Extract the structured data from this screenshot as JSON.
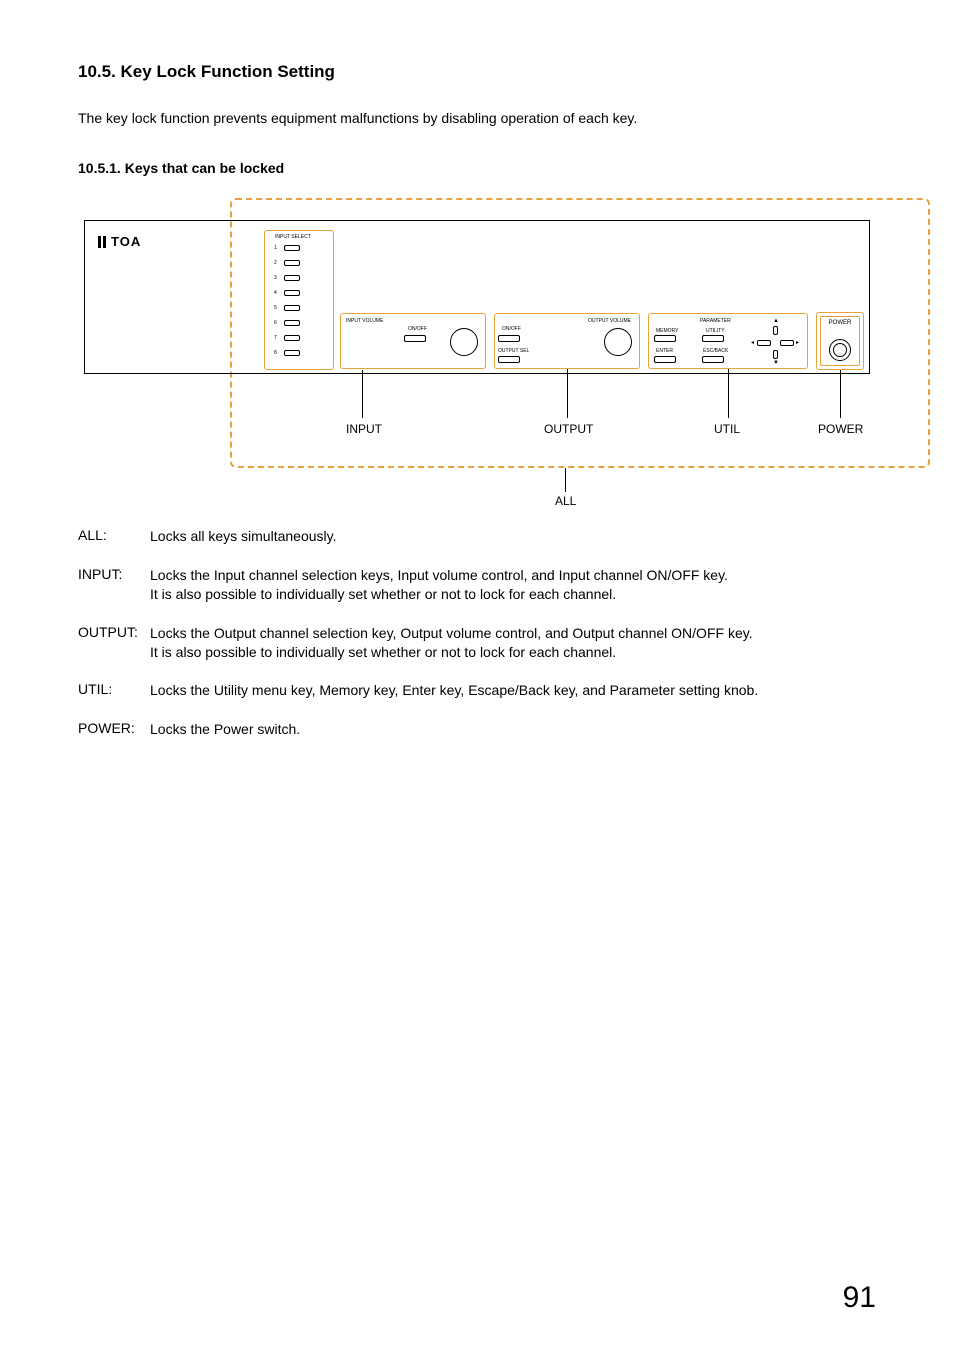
{
  "section": {
    "title": "10.5. Key Lock Function Setting",
    "intro": "The key lock function prevents equipment malfunctions by disabling operation of each key.",
    "subsection_title": "10.5.1. Keys that can be locked"
  },
  "diagram": {
    "logo_text": "TOA",
    "labels": {
      "input_select": "INPUT SELECT",
      "input_volume": "INPUT VOLUME",
      "output_volume": "OUTPUT VOLUME",
      "output_sel": "OUTPUT SEL",
      "onoff_left": "ON/OFF",
      "onoff_right": "ON/OFF",
      "parameter": "PARAMETER",
      "memory": "MEMORY",
      "utility": "UTILITY",
      "enter": "ENTER",
      "escback": "ESC/BACK",
      "power": "POWER",
      "ch": [
        "1",
        "2",
        "3",
        "4",
        "5",
        "6",
        "7",
        "8"
      ]
    },
    "categories": {
      "input": "INPUT",
      "output": "OUTPUT",
      "util": "UTIL",
      "power": "POWER",
      "all": "ALL"
    },
    "colors": {
      "orange": "#e8a23c",
      "black": "#000000",
      "white": "#ffffff"
    }
  },
  "definitions": [
    {
      "term": "ALL:",
      "body": "Locks all keys simultaneously."
    },
    {
      "term": "INPUT:",
      "body": "Locks the Input channel selection keys, Input volume control, and Input channel ON/OFF key.\nIt is also possible to individually set whether or not to lock for each channel."
    },
    {
      "term": "OUTPUT:",
      "body": "Locks the Output channel selection key, Output volume control, and Output channel ON/OFF key.\nIt is also possible to individually set whether or not to lock for each channel."
    },
    {
      "term": "UTIL:",
      "body": "Locks the Utility menu key, Memory key, Enter key, Escape/Back key, and Parameter setting knob."
    },
    {
      "term": "POWER:",
      "body": "Locks the Power switch."
    }
  ],
  "page_number": "91"
}
